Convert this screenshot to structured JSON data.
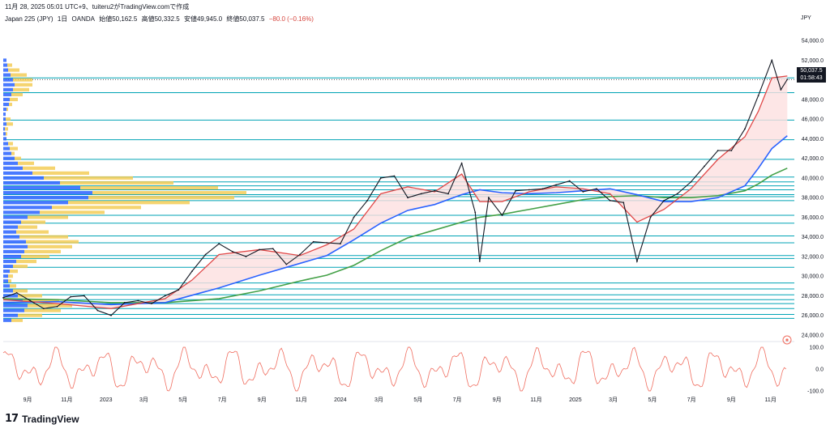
{
  "header": {
    "published": "11月 28, 2025 05:01 UTC+9、tuiteru2がTradingView.comで作成"
  },
  "symbol": {
    "name": "Japan 225 (JPY)",
    "interval": "1日",
    "broker": "OANDA",
    "open": "始値50,162.5",
    "high": "高値50,332.5",
    "low": "安値49,945.0",
    "close": "終値50,037.5",
    "change": "−80.0 (−0.16%)"
  },
  "currency": "JPY",
  "last_price": {
    "value": "50,037.5",
    "countdown": "01:58:43"
  },
  "brand": {
    "logo": "17",
    "name": "TradingView"
  },
  "colors": {
    "up": "#131722",
    "ema_short": "#e04848",
    "ema_mid": "#2962ff",
    "ema_long": "#43a047",
    "hlines": "#00a3b5",
    "fill": "#fde0e0",
    "rsi": "#f06e60",
    "vp_blue": "#2962ff",
    "vp_yellow": "#f2c94c"
  },
  "chart_data": {
    "type": "line",
    "title": "Japan 225 (JPY)",
    "y_ticks": [
      24000,
      26000,
      28000,
      30000,
      32000,
      34000,
      36000,
      38000,
      40000,
      42000,
      44000,
      46000,
      48000,
      50000,
      52000,
      54000
    ],
    "y_tick_labels": [
      "24,000.0",
      "26,000.0",
      "28,000.0",
      "30,000.0",
      "32,000.0",
      "34,000.0",
      "36,000.0",
      "38,000.0",
      "40,000.0",
      "42,000.0",
      "44,000.0",
      "46,000.0",
      "48,000.0",
      "50,000.0",
      "52,000.0",
      "54,000.0"
    ],
    "ylim": [
      23500,
      55500
    ],
    "x_tick_labels": [
      "9月",
      "11月",
      "2023",
      "3月",
      "5月",
      "7月",
      "9月",
      "11月",
      "2024",
      "3月",
      "5月",
      "7月",
      "9月",
      "11月",
      "2025",
      "3月",
      "5月",
      "7月",
      "9月",
      "11月"
    ],
    "x_tick_dates": [
      "2022-09-01",
      "2022-11-01",
      "2023-01-01",
      "2023-03-01",
      "2023-05-01",
      "2023-07-01",
      "2023-09-01",
      "2023-11-01",
      "2024-01-01",
      "2024-03-01",
      "2024-05-01",
      "2024-07-01",
      "2024-09-01",
      "2024-11-01",
      "2025-01-01",
      "2025-03-01",
      "2025-05-01",
      "2025-07-01",
      "2025-09-01",
      "2025-11-01"
    ],
    "xlim": [
      "2022-07-25",
      "2025-12-08"
    ],
    "price_series": {
      "name": "Japan 225",
      "dates": [
        "2022-07-25",
        "2022-08-15",
        "2022-09-05",
        "2022-09-26",
        "2022-10-17",
        "2022-11-07",
        "2022-11-28",
        "2022-12-19",
        "2023-01-09",
        "2023-01-30",
        "2023-02-20",
        "2023-03-13",
        "2023-04-03",
        "2023-04-24",
        "2023-05-15",
        "2023-06-05",
        "2023-06-26",
        "2023-07-17",
        "2023-08-07",
        "2023-08-28",
        "2023-09-18",
        "2023-10-09",
        "2023-10-30",
        "2023-11-20",
        "2023-12-11",
        "2024-01-01",
        "2024-01-22",
        "2024-02-12",
        "2024-03-04",
        "2024-03-25",
        "2024-04-15",
        "2024-05-06",
        "2024-05-27",
        "2024-06-17",
        "2024-07-08",
        "2024-07-29",
        "2024-08-05",
        "2024-08-19",
        "2024-09-09",
        "2024-09-30",
        "2024-10-21",
        "2024-11-11",
        "2024-12-02",
        "2024-12-23",
        "2025-01-13",
        "2025-02-03",
        "2025-02-24",
        "2025-03-17",
        "2025-04-07",
        "2025-04-28",
        "2025-05-19",
        "2025-06-09",
        "2025-06-30",
        "2025-07-21",
        "2025-08-11",
        "2025-09-01",
        "2025-09-22",
        "2025-10-13",
        "2025-11-03",
        "2025-11-17",
        "2025-11-27"
      ],
      "values": [
        27800,
        28300,
        27500,
        26700,
        26900,
        27900,
        28000,
        26500,
        26000,
        27300,
        27500,
        27200,
        28000,
        28600,
        30500,
        32200,
        33300,
        32500,
        32000,
        32700,
        32800,
        31200,
        32200,
        33500,
        33400,
        33300,
        36000,
        37700,
        40000,
        40200,
        38000,
        38400,
        38700,
        38400,
        41500,
        36500,
        31500,
        38000,
        36200,
        38700,
        38800,
        38900,
        39300,
        39700,
        38600,
        38900,
        37700,
        37500,
        31500,
        36000,
        37700,
        38400,
        39600,
        41200,
        42800,
        42800,
        45000,
        48400,
        52000,
        49000,
        50037.5
      ]
    },
    "ema_short": {
      "dates": [
        "2022-07-25",
        "2022-10-17",
        "2023-01-09",
        "2023-04-03",
        "2023-05-15",
        "2023-06-26",
        "2023-08-28",
        "2023-10-30",
        "2023-12-11",
        "2024-01-22",
        "2024-03-04",
        "2024-04-15",
        "2024-05-27",
        "2024-07-08",
        "2024-08-05",
        "2024-09-09",
        "2024-10-21",
        "2024-12-02",
        "2025-01-13",
        "2025-02-24",
        "2025-04-07",
        "2025-05-19",
        "2025-06-30",
        "2025-08-11",
        "2025-09-22",
        "2025-10-13",
        "2025-11-03",
        "2025-11-27"
      ],
      "values": [
        27600,
        27200,
        26700,
        27700,
        29600,
        32200,
        32700,
        32100,
        33200,
        34800,
        38400,
        39100,
        38600,
        40400,
        37600,
        37600,
        38600,
        39100,
        38900,
        38400,
        35500,
        36800,
        38900,
        41900,
        44200,
        46800,
        50200,
        50400
      ]
    },
    "ema_mid": {
      "dates": [
        "2022-07-25",
        "2022-10-17",
        "2023-01-09",
        "2023-04-03",
        "2023-06-26",
        "2023-08-28",
        "2023-10-30",
        "2023-12-11",
        "2024-01-22",
        "2024-03-04",
        "2024-04-15",
        "2024-05-27",
        "2024-07-08",
        "2024-08-05",
        "2024-09-09",
        "2024-10-21",
        "2024-12-02",
        "2025-01-13",
        "2025-02-24",
        "2025-04-07",
        "2025-05-19",
        "2025-06-30",
        "2025-08-11",
        "2025-09-22",
        "2025-10-13",
        "2025-11-03",
        "2025-11-27"
      ],
      "values": [
        27300,
        27400,
        27100,
        27300,
        28800,
        30100,
        31300,
        32100,
        33700,
        35400,
        36700,
        37300,
        38300,
        38800,
        38500,
        38400,
        38500,
        38700,
        38900,
        38300,
        37600,
        37600,
        38000,
        39200,
        41000,
        43000,
        44300
      ]
    },
    "ema_long": {
      "dates": [
        "2022-07-25",
        "2022-10-17",
        "2023-01-09",
        "2023-04-03",
        "2023-06-26",
        "2023-08-28",
        "2023-10-30",
        "2023-12-11",
        "2024-01-22",
        "2024-03-04",
        "2024-04-15",
        "2024-05-27",
        "2024-07-08",
        "2024-08-05",
        "2024-09-09",
        "2024-10-21",
        "2024-12-02",
        "2025-01-13",
        "2025-02-24",
        "2025-04-07",
        "2025-05-19",
        "2025-06-30",
        "2025-08-11",
        "2025-09-22",
        "2025-10-13",
        "2025-11-03",
        "2025-11-27"
      ],
      "values": [
        27700,
        27600,
        27300,
        27300,
        27700,
        28500,
        29500,
        30100,
        31100,
        32600,
        33900,
        34700,
        35500,
        36000,
        36300,
        36800,
        37300,
        37800,
        38100,
        38200,
        38000,
        38000,
        38200,
        38700,
        39400,
        40300,
        41000
      ]
    },
    "horizontal_levels": [
      25700,
      26100,
      26700,
      27200,
      27600,
      28100,
      28700,
      29300,
      30900,
      31800,
      32100,
      33400,
      34100,
      35400,
      36200,
      37700,
      38100,
      38300,
      38800,
      39200,
      39600,
      40100,
      41900,
      43900,
      45900,
      48700,
      50200
    ],
    "volume_profile": [
      {
        "price": 52000,
        "blue": 4,
        "yellow": 0
      },
      {
        "price": 51500,
        "blue": 5,
        "yellow": 6
      },
      {
        "price": 51000,
        "blue": 6,
        "yellow": 14
      },
      {
        "price": 50500,
        "blue": 9,
        "yellow": 20
      },
      {
        "price": 50000,
        "blue": 12,
        "yellow": 24
      },
      {
        "price": 49500,
        "blue": 14,
        "yellow": 22
      },
      {
        "price": 49000,
        "blue": 12,
        "yellow": 20
      },
      {
        "price": 48500,
        "blue": 10,
        "yellow": 14
      },
      {
        "price": 48000,
        "blue": 8,
        "yellow": 10
      },
      {
        "price": 47500,
        "blue": 7,
        "yellow": 4
      },
      {
        "price": 47000,
        "blue": 4,
        "yellow": 2
      },
      {
        "price": 46500,
        "blue": 3,
        "yellow": 0
      },
      {
        "price": 46000,
        "blue": 3,
        "yellow": 6
      },
      {
        "price": 45500,
        "blue": 4,
        "yellow": 8
      },
      {
        "price": 45000,
        "blue": 2,
        "yellow": 4
      },
      {
        "price": 44500,
        "blue": 3,
        "yellow": 2
      },
      {
        "price": 44000,
        "blue": 4,
        "yellow": 0
      },
      {
        "price": 43500,
        "blue": 6,
        "yellow": 6
      },
      {
        "price": 43000,
        "blue": 8,
        "yellow": 10
      },
      {
        "price": 42500,
        "blue": 10,
        "yellow": 4
      },
      {
        "price": 42000,
        "blue": 14,
        "yellow": 8
      },
      {
        "price": 41500,
        "blue": 18,
        "yellow": 20
      },
      {
        "price": 41000,
        "blue": 24,
        "yellow": 40
      },
      {
        "price": 40500,
        "blue": 36,
        "yellow": 70
      },
      {
        "price": 40000,
        "blue": 50,
        "yellow": 110
      },
      {
        "price": 39500,
        "blue": 70,
        "yellow": 140
      },
      {
        "price": 39000,
        "blue": 95,
        "yellow": 170
      },
      {
        "price": 38500,
        "blue": 110,
        "yellow": 190
      },
      {
        "price": 38000,
        "blue": 105,
        "yellow": 180
      },
      {
        "price": 37500,
        "blue": 80,
        "yellow": 150
      },
      {
        "price": 37000,
        "blue": 60,
        "yellow": 110
      },
      {
        "price": 36500,
        "blue": 45,
        "yellow": 80
      },
      {
        "price": 36000,
        "blue": 30,
        "yellow": 50
      },
      {
        "price": 35500,
        "blue": 22,
        "yellow": 30
      },
      {
        "price": 35000,
        "blue": 18,
        "yellow": 24
      },
      {
        "price": 34500,
        "blue": 16,
        "yellow": 40
      },
      {
        "price": 34000,
        "blue": 20,
        "yellow": 60
      },
      {
        "price": 33500,
        "blue": 28,
        "yellow": 65
      },
      {
        "price": 33000,
        "blue": 30,
        "yellow": 55
      },
      {
        "price": 32500,
        "blue": 26,
        "yellow": 45
      },
      {
        "price": 32000,
        "blue": 22,
        "yellow": 35
      },
      {
        "price": 31500,
        "blue": 16,
        "yellow": 25
      },
      {
        "price": 31000,
        "blue": 12,
        "yellow": 18
      },
      {
        "price": 30500,
        "blue": 8,
        "yellow": 10
      },
      {
        "price": 30000,
        "blue": 6,
        "yellow": 6
      },
      {
        "price": 29500,
        "blue": 6,
        "yellow": 4
      },
      {
        "price": 29000,
        "blue": 8,
        "yellow": 8
      },
      {
        "price": 28500,
        "blue": 12,
        "yellow": 18
      },
      {
        "price": 28000,
        "blue": 18,
        "yellow": 30
      },
      {
        "price": 27500,
        "blue": 24,
        "yellow": 45
      },
      {
        "price": 27000,
        "blue": 30,
        "yellow": 55
      },
      {
        "price": 26500,
        "blue": 26,
        "yellow": 45
      },
      {
        "price": 26000,
        "blue": 18,
        "yellow": 30
      },
      {
        "price": 25500,
        "blue": 10,
        "yellow": 14
      }
    ],
    "rsi_panel": {
      "y_ticks": [
        100,
        0,
        -100
      ],
      "y_tick_labels": [
        "100.0",
        "0.0",
        "-100.0"
      ],
      "ylim": [
        -115,
        115
      ]
    }
  }
}
